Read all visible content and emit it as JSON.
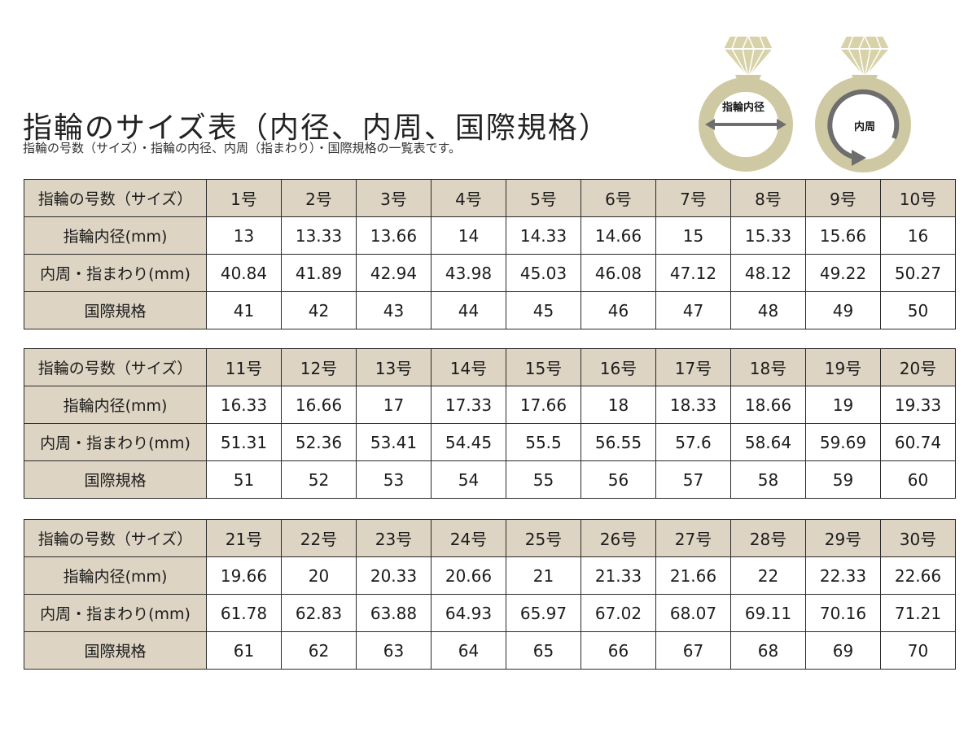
{
  "header": {
    "title": "指輪のサイズ表（内径、内周、国際規格）",
    "subtitle": "指輪の号数（サイズ）・指輪の内径、内周（指まわり）・国際規格の一覧表です。"
  },
  "diagrams": {
    "inner_diameter_label": "指輪内径",
    "circumference_label": "内周",
    "ring_color": "#cfc9a3",
    "gem_color": "#d8d2a8",
    "arrow_color": "#6e6e6e"
  },
  "colors": {
    "header_cell_bg": "#ddd4c3",
    "border": "#2a2a2a"
  },
  "tables": [
    {
      "rows": [
        {
          "label": "指輪の号数（サイズ）",
          "values": [
            "1号",
            "2号",
            "3号",
            "4号",
            "5号",
            "6号",
            "7号",
            "8号",
            "9号",
            "10号"
          ]
        },
        {
          "label": "指輪内径(mm)",
          "values": [
            "13",
            "13.33",
            "13.66",
            "14",
            "14.33",
            "14.66",
            "15",
            "15.33",
            "15.66",
            "16"
          ]
        },
        {
          "label": "内周・指まわり(mm)",
          "values": [
            "40.84",
            "41.89",
            "42.94",
            "43.98",
            "45.03",
            "46.08",
            "47.12",
            "48.12",
            "49.22",
            "50.27"
          ]
        },
        {
          "label": "国際規格",
          "values": [
            "41",
            "42",
            "43",
            "44",
            "45",
            "46",
            "47",
            "48",
            "49",
            "50"
          ]
        }
      ]
    },
    {
      "rows": [
        {
          "label": "指輪の号数（サイズ）",
          "values": [
            "11号",
            "12号",
            "13号",
            "14号",
            "15号",
            "16号",
            "17号",
            "18号",
            "19号",
            "20号"
          ]
        },
        {
          "label": "指輪内径(mm)",
          "values": [
            "16.33",
            "16.66",
            "17",
            "17.33",
            "17.66",
            "18",
            "18.33",
            "18.66",
            "19",
            "19.33"
          ]
        },
        {
          "label": "内周・指まわり(mm)",
          "values": [
            "51.31",
            "52.36",
            "53.41",
            "54.45",
            "55.5",
            "56.55",
            "57.6",
            "58.64",
            "59.69",
            "60.74"
          ]
        },
        {
          "label": "国際規格",
          "values": [
            "51",
            "52",
            "53",
            "54",
            "55",
            "56",
            "57",
            "58",
            "59",
            "60"
          ]
        }
      ]
    },
    {
      "rows": [
        {
          "label": "指輪の号数（サイズ）",
          "values": [
            "21号",
            "22号",
            "23号",
            "24号",
            "25号",
            "26号",
            "27号",
            "28号",
            "29号",
            "30号"
          ]
        },
        {
          "label": "指輪内径(mm)",
          "values": [
            "19.66",
            "20",
            "20.33",
            "20.66",
            "21",
            "21.33",
            "21.66",
            "22",
            "22.33",
            "22.66"
          ]
        },
        {
          "label": "内周・指まわり(mm)",
          "values": [
            "61.78",
            "62.83",
            "63.88",
            "64.93",
            "65.97",
            "67.02",
            "68.07",
            "69.11",
            "70.16",
            "71.21"
          ]
        },
        {
          "label": "国際規格",
          "values": [
            "61",
            "62",
            "63",
            "64",
            "65",
            "66",
            "67",
            "68",
            "69",
            "70"
          ]
        }
      ]
    }
  ]
}
